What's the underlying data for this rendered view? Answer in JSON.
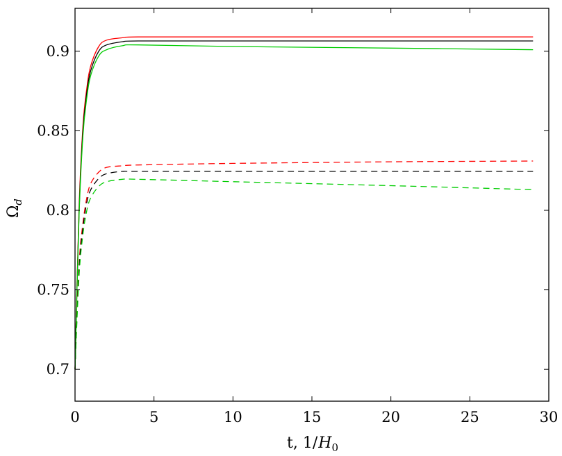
{
  "chart_data": {
    "type": "line",
    "title": "",
    "xlabel": "t, 1/H",
    "xlabel_sub": "0",
    "ylabel": "Ω",
    "ylabel_sub": "d",
    "xlim": [
      0,
      30
    ],
    "ylim": [
      0.68,
      0.927
    ],
    "xticks": [
      0,
      5,
      10,
      15,
      20,
      25,
      30
    ],
    "yticks": [
      0.7,
      0.75,
      0.8,
      0.85,
      0.9
    ],
    "xtick_labels": [
      "0",
      "5",
      "10",
      "15",
      "20",
      "25",
      "30"
    ],
    "ytick_labels": [
      "0.7",
      "0.75",
      "0.8",
      "0.85",
      "0.9"
    ],
    "grid": false,
    "legend": "none",
    "series": [
      {
        "color": "#ff0000",
        "style": "solid",
        "x": [
          0,
          0.25,
          0.5,
          0.75,
          1.0,
          1.5,
          2.0,
          3.0,
          4.0,
          10,
          20,
          29
        ],
        "y": [
          0.7,
          0.8,
          0.853,
          0.877,
          0.891,
          0.903,
          0.907,
          0.9085,
          0.909,
          0.909,
          0.909,
          0.909
        ]
      },
      {
        "color": "#000000",
        "style": "solid",
        "x": [
          0,
          0.25,
          0.5,
          0.75,
          1.0,
          1.5,
          2.0,
          3.0,
          4.0,
          10,
          20,
          29
        ],
        "y": [
          0.7,
          0.797,
          0.85,
          0.874,
          0.888,
          0.9,
          0.904,
          0.906,
          0.9065,
          0.9065,
          0.9065,
          0.9065
        ]
      },
      {
        "color": "#00cc00",
        "style": "solid",
        "x": [
          0,
          0.25,
          0.5,
          0.75,
          1.0,
          1.5,
          2.0,
          3.0,
          4.0,
          10,
          20,
          29
        ],
        "y": [
          0.7,
          0.795,
          0.847,
          0.871,
          0.885,
          0.897,
          0.901,
          0.9035,
          0.904,
          0.903,
          0.902,
          0.901
        ]
      },
      {
        "color": "#ff0000",
        "style": "dashed",
        "x": [
          0,
          0.25,
          0.5,
          0.75,
          1.0,
          1.5,
          2.0,
          3.0,
          4.0,
          10,
          20,
          29
        ],
        "y": [
          0.7,
          0.765,
          0.792,
          0.808,
          0.817,
          0.824,
          0.827,
          0.828,
          0.8285,
          0.8295,
          0.8305,
          0.831
        ]
      },
      {
        "color": "#000000",
        "style": "dashed",
        "x": [
          0,
          0.25,
          0.5,
          0.75,
          1.0,
          1.5,
          2.0,
          3.0,
          4.0,
          10,
          20,
          29
        ],
        "y": [
          0.7,
          0.762,
          0.789,
          0.805,
          0.813,
          0.82,
          0.823,
          0.8245,
          0.8245,
          0.8245,
          0.8245,
          0.8245
        ]
      },
      {
        "color": "#00cc00",
        "style": "dashed",
        "x": [
          0,
          0.25,
          0.5,
          0.75,
          1.0,
          1.5,
          2.0,
          3.0,
          4.0,
          10,
          20,
          29
        ],
        "y": [
          0.7,
          0.758,
          0.785,
          0.8,
          0.808,
          0.815,
          0.818,
          0.8195,
          0.8195,
          0.818,
          0.8155,
          0.813
        ]
      }
    ]
  }
}
